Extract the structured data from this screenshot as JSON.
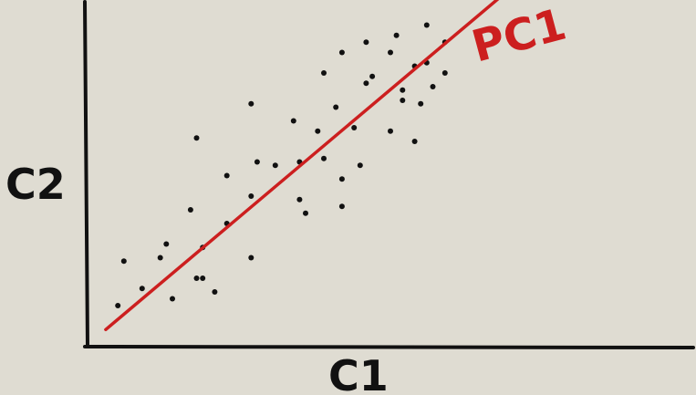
{
  "chart_data": {
    "type": "scatter",
    "title": "",
    "xlabel": "C1",
    "ylabel": "C2",
    "xlim": [
      0,
      100
    ],
    "ylim": [
      0,
      100
    ],
    "grid": false,
    "colors": {
      "points": "#111111",
      "axes": "#111111",
      "line": "#cc1f1f",
      "line_label": "#cc1f1f"
    },
    "points": [
      {
        "x": 5,
        "y": 12
      },
      {
        "x": 6,
        "y": 25
      },
      {
        "x": 9,
        "y": 17
      },
      {
        "x": 12,
        "y": 26
      },
      {
        "x": 13,
        "y": 30
      },
      {
        "x": 14,
        "y": 14
      },
      {
        "x": 17,
        "y": 40
      },
      {
        "x": 18,
        "y": 20
      },
      {
        "x": 18,
        "y": 61
      },
      {
        "x": 19,
        "y": 29
      },
      {
        "x": 19,
        "y": 20
      },
      {
        "x": 21,
        "y": 16
      },
      {
        "x": 23,
        "y": 36
      },
      {
        "x": 23,
        "y": 50
      },
      {
        "x": 27,
        "y": 26
      },
      {
        "x": 27,
        "y": 44
      },
      {
        "x": 27,
        "y": 71
      },
      {
        "x": 28,
        "y": 54
      },
      {
        "x": 31,
        "y": 53
      },
      {
        "x": 34,
        "y": 66
      },
      {
        "x": 35,
        "y": 54
      },
      {
        "x": 35,
        "y": 43
      },
      {
        "x": 36,
        "y": 39
      },
      {
        "x": 38,
        "y": 63
      },
      {
        "x": 39,
        "y": 55
      },
      {
        "x": 39,
        "y": 80
      },
      {
        "x": 41,
        "y": 70
      },
      {
        "x": 42,
        "y": 49
      },
      {
        "x": 42,
        "y": 41
      },
      {
        "x": 42,
        "y": 86
      },
      {
        "x": 44,
        "y": 64
      },
      {
        "x": 45,
        "y": 53
      },
      {
        "x": 46,
        "y": 77
      },
      {
        "x": 46,
        "y": 89
      },
      {
        "x": 47,
        "y": 79
      },
      {
        "x": 50,
        "y": 63
      },
      {
        "x": 50,
        "y": 86
      },
      {
        "x": 51,
        "y": 91
      },
      {
        "x": 52,
        "y": 72
      },
      {
        "x": 52,
        "y": 75
      },
      {
        "x": 54,
        "y": 82
      },
      {
        "x": 54,
        "y": 60
      },
      {
        "x": 55,
        "y": 71
      },
      {
        "x": 56,
        "y": 94
      },
      {
        "x": 56,
        "y": 83
      },
      {
        "x": 57,
        "y": 76
      },
      {
        "x": 59,
        "y": 80
      },
      {
        "x": 59,
        "y": 89
      }
    ],
    "line": {
      "label": "PC1",
      "from": [
        3,
        5
      ],
      "to": [
        68,
        102
      ]
    }
  }
}
